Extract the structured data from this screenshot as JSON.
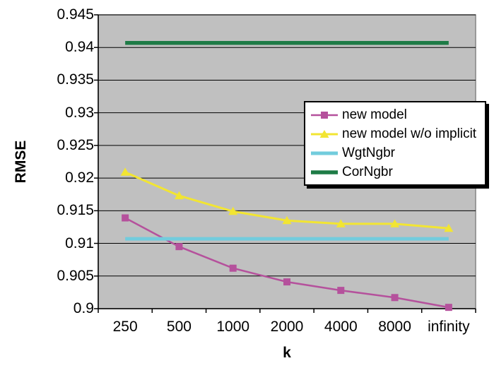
{
  "chart_data": {
    "type": "line",
    "title": "",
    "xlabel": "k",
    "ylabel": "RMSE",
    "x_categories": [
      "250",
      "500",
      "1000",
      "2000",
      "4000",
      "8000",
      "infinity"
    ],
    "y_tick_labels": [
      "0.945",
      "0.94",
      "0.935",
      "0.93",
      "0.925",
      "0.92",
      "0.915",
      "0.91",
      "0.905",
      "0.9"
    ],
    "ylim": [
      0.9,
      0.945
    ],
    "y_major_step": 0.005,
    "grid": "horizontal-major",
    "legend_position": "inside-upper-right",
    "plot_bg_color": "#c0c0c0",
    "plot_border_color": "#848484",
    "gridline_color": "#000000",
    "series": [
      {
        "name": "new model",
        "color": "#b5519c",
        "marker": "square",
        "line_width": 2.5,
        "values": [
          0.9139,
          0.9095,
          0.9062,
          0.9041,
          0.9028,
          0.9017,
          0.9002
        ]
      },
      {
        "name": "new model w/o implicit",
        "color": "#f2e532",
        "marker": "triangle",
        "line_width": 3,
        "values": [
          0.9209,
          0.9173,
          0.9149,
          0.9135,
          0.913,
          0.913,
          0.9123
        ]
      },
      {
        "name": "WgtNgbr",
        "color": "#72ccdd",
        "marker": "none",
        "line_width": 5,
        "values": [
          0.9107,
          0.9107,
          0.9107,
          0.9107,
          0.9107,
          0.9107,
          0.9107
        ]
      },
      {
        "name": "CorNgbr",
        "color": "#1e7b46",
        "marker": "none",
        "line_width": 5.5,
        "values": [
          0.9407,
          0.9407,
          0.9407,
          0.9407,
          0.9407,
          0.9407,
          0.9407
        ]
      }
    ]
  }
}
